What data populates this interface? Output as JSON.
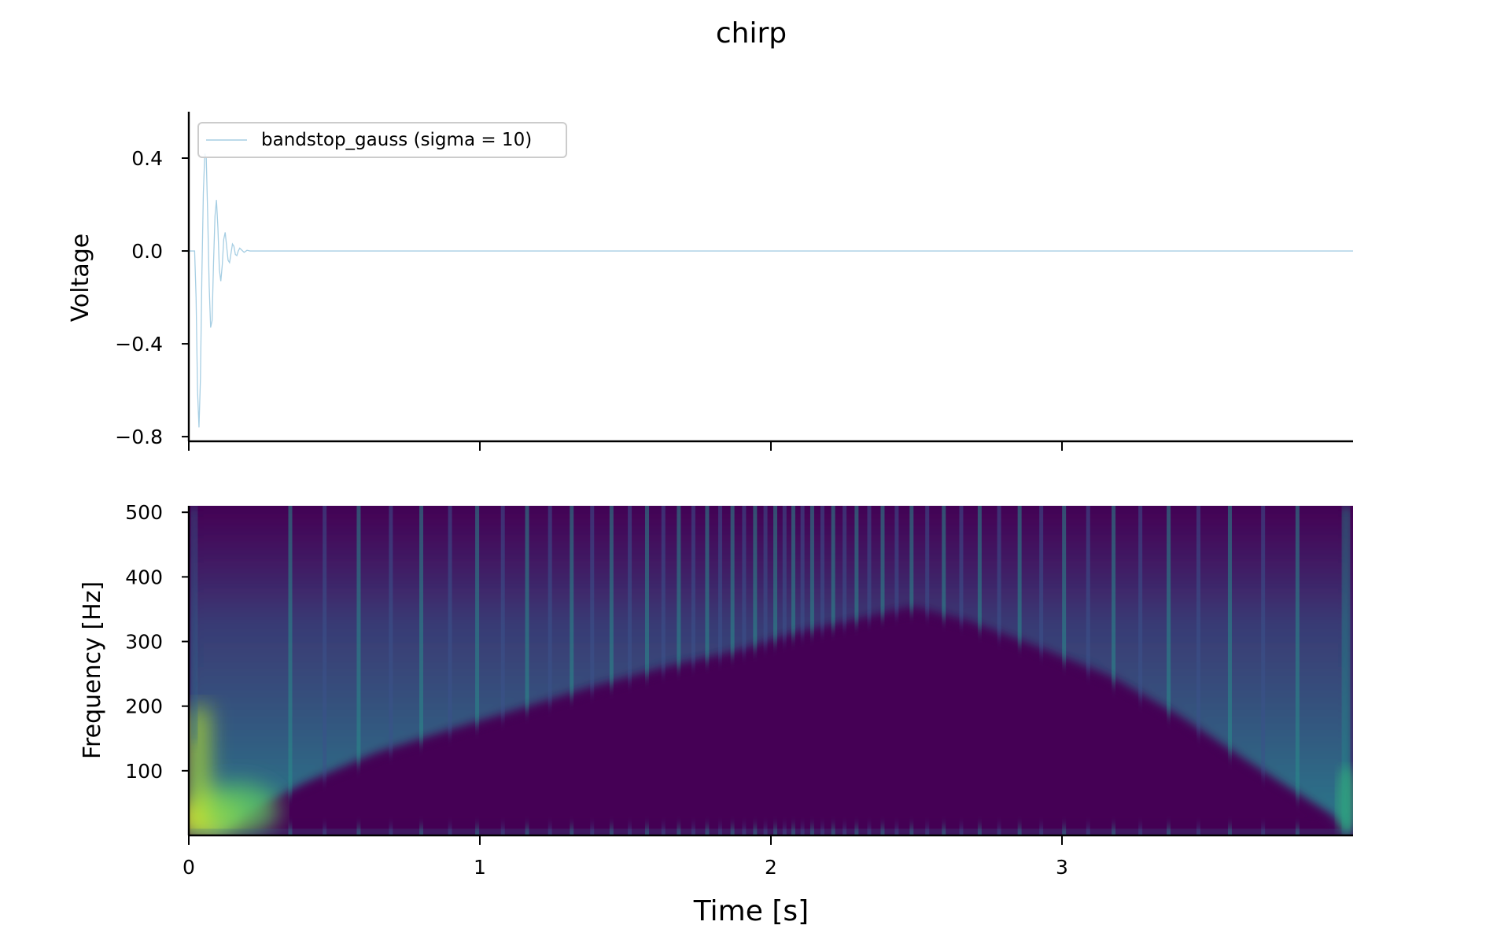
{
  "title": "chirp",
  "chart_data": [
    {
      "type": "line",
      "ylabel": "Voltage",
      "xlim": [
        0,
        4
      ],
      "ylim": [
        -0.82,
        0.6
      ],
      "yticks": [
        {
          "value": 0.4,
          "label": "0.4"
        },
        {
          "value": 0.0,
          "label": "0.0"
        },
        {
          "value": -0.4,
          "label": "−0.4"
        },
        {
          "value": -0.8,
          "label": "−0.8"
        }
      ],
      "xticks": [
        0,
        1,
        2,
        3
      ],
      "legend": {
        "placement": "upper-left",
        "entries": [
          "bandstop_gauss (sigma = 10)"
        ]
      },
      "series": [
        {
          "name": "bandstop_gauss (sigma = 10)",
          "color": "#a6cee3",
          "x": [
            0,
            0.02,
            0.025,
            0.03,
            0.035,
            0.04,
            0.045,
            0.05,
            0.055,
            0.06,
            0.065,
            0.07,
            0.075,
            0.08,
            0.085,
            0.09,
            0.095,
            0.1,
            0.105,
            0.11,
            0.115,
            0.12,
            0.125,
            0.13,
            0.135,
            0.14,
            0.145,
            0.15,
            0.155,
            0.16,
            0.165,
            0.17,
            0.175,
            0.18,
            0.19,
            0.2,
            0.21,
            0.25,
            1.0,
            2.0,
            3.0,
            4.0
          ],
          "y": [
            0,
            0,
            -0.2,
            -0.6,
            -0.76,
            -0.55,
            -0.1,
            0.25,
            0.42,
            0.4,
            0.15,
            -0.15,
            -0.33,
            -0.3,
            -0.05,
            0.15,
            0.22,
            0.1,
            -0.08,
            -0.13,
            -0.06,
            0.05,
            0.08,
            0.02,
            -0.04,
            -0.05,
            -0.01,
            0.03,
            0.02,
            -0.015,
            -0.02,
            0.0,
            0.012,
            0.006,
            -0.006,
            0.003,
            0.0,
            0,
            0,
            0,
            0,
            0
          ]
        }
      ]
    },
    {
      "type": "heatmap",
      "ylabel": "Frequency [Hz]",
      "xlabel": "Time [s]",
      "xlim": [
        0,
        4
      ],
      "ylim": [
        0,
        500
      ],
      "xticks": [
        0,
        1,
        2,
        3
      ],
      "yticks": [
        100,
        200,
        300,
        400,
        500
      ],
      "colormap": "viridis",
      "colors": {
        "low": "#440154",
        "mid": "#2a8c8b",
        "high": "#fde725"
      },
      "description_data": {
        "dead_band_boundary_hz": [
          {
            "t": 0.28,
            "f": 40
          },
          {
            "t": 0.5,
            "f": 90
          },
          {
            "t": 1.0,
            "f": 170
          },
          {
            "t": 1.5,
            "f": 240
          },
          {
            "t": 2.0,
            "f": 330
          },
          {
            "t": 2.2,
            "f": 345
          },
          {
            "t": 2.5,
            "f": 300
          },
          {
            "t": 3.0,
            "f": 220
          },
          {
            "t": 3.5,
            "f": 120
          },
          {
            "t": 3.8,
            "f": 50
          }
        ]
      }
    }
  ]
}
